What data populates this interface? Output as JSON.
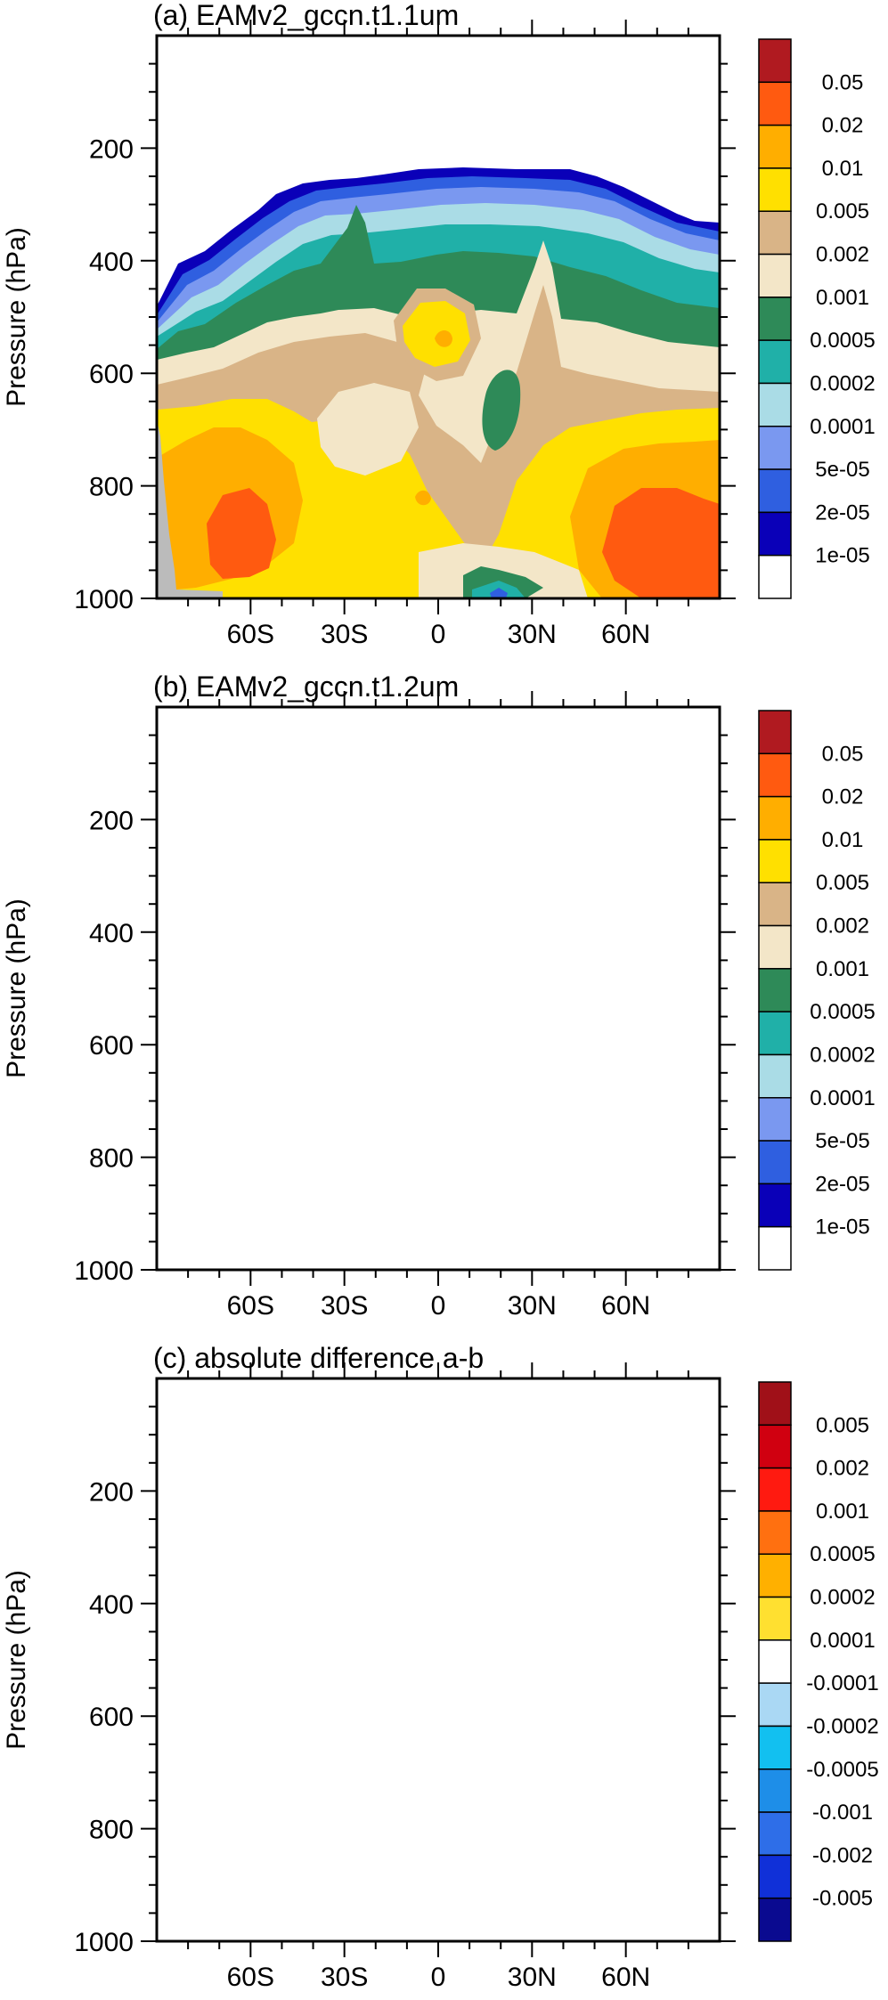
{
  "chart_data": [
    {
      "type": "heatmap",
      "title": "(a) EAMv2_gccn.t1.1um",
      "ylabel": "Pressure (hPa)",
      "xticks": [
        "60S",
        "30S",
        "0",
        "30N",
        "60N"
      ],
      "yticks": [
        "200",
        "400",
        "600",
        "800",
        "1000"
      ],
      "colorbar": {
        "levels": [
          "1e-05",
          "2e-05",
          "5e-05",
          "0.0001",
          "0.0002",
          "0.0005",
          "0.001",
          "0.002",
          "0.005",
          "0.01",
          "0.02",
          "0.05"
        ],
        "colors": [
          "#ffffff",
          "#0a00b8",
          "#2f5fe0",
          "#7a98f0",
          "#aadce6",
          "#20b0a8",
          "#2e8a58",
          "#f3e6c8",
          "#d9b487",
          "#ffe000",
          "#ffae00",
          "#ff5a10",
          "#b01a20"
        ]
      }
    },
    {
      "type": "heatmap",
      "title": "(b) EAMv2_gccn.t1.2um",
      "ylabel": "Pressure (hPa)",
      "xticks": [
        "60S",
        "30S",
        "0",
        "30N",
        "60N"
      ],
      "yticks": [
        "200",
        "400",
        "600",
        "800",
        "1000"
      ],
      "colorbar": {
        "levels": [
          "1e-05",
          "2e-05",
          "5e-05",
          "0.0001",
          "0.0002",
          "0.0005",
          "0.001",
          "0.002",
          "0.005",
          "0.01",
          "0.02",
          "0.05"
        ],
        "colors": [
          "#ffffff",
          "#0a00b8",
          "#2f5fe0",
          "#7a98f0",
          "#aadce6",
          "#20b0a8",
          "#2e8a58",
          "#f3e6c8",
          "#d9b487",
          "#ffe000",
          "#ffae00",
          "#ff5a10",
          "#b01a20"
        ]
      }
    },
    {
      "type": "heatmap",
      "title": "(c) absolute difference a-b",
      "ylabel": "Pressure (hPa)",
      "xticks": [
        "60S",
        "30S",
        "0",
        "30N",
        "60N"
      ],
      "yticks": [
        "200",
        "400",
        "600",
        "800",
        "1000"
      ],
      "colorbar": {
        "levels": [
          "-0.005",
          "-0.002",
          "-0.001",
          "-0.0005",
          "-0.0002",
          "-0.0001",
          "0.0001",
          "0.0002",
          "0.0005",
          "0.001",
          "0.002",
          "0.005"
        ],
        "colors": [
          "#0a0a90",
          "#1030d8",
          "#2e6ee8",
          "#1e8ee8",
          "#12c0f0",
          "#aad8f4",
          "#ffffff",
          "#ffe030",
          "#ffb000",
          "#ff7010",
          "#ff1a10",
          "#d00010",
          "#a01018"
        ]
      }
    }
  ]
}
